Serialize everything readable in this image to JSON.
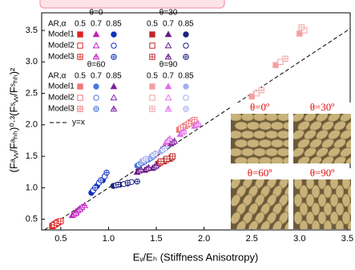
{
  "chart_data": {
    "type": "scatter",
    "x_label": "Eᵥ/Eₕ (Stiffness Anisotropy)",
    "y_label": "(Fᵃᵥᵥ/Fᵃₕₕ)⁰·³(Fˢᵥᵥ/Fˢₕₕ)²",
    "xlim": [
      0.3,
      3.53
    ],
    "ylim": [
      0.33,
      3.78
    ],
    "xticks": [
      0.5,
      {
        "value": 1,
        "label": "1.0"
      },
      1.5,
      {
        "value": 2,
        "label": "2.0"
      },
      2.5,
      {
        "value": 3,
        "label": "3.0"
      },
      3.5
    ],
    "yticks": [
      0.5,
      {
        "value": 1,
        "label": "1.0"
      },
      1.5,
      {
        "value": 2,
        "label": "2.0"
      },
      2.5,
      {
        "value": 3,
        "label": "3.0"
      },
      3.5
    ],
    "line_label": "y=x",
    "fills": [
      "filled",
      "open",
      "crossed"
    ],
    "legend_blocks": [
      {
        "ar_header": "AR,α",
        "models": [
          "Model1",
          "Model2",
          "Model3"
        ],
        "groups": [
          {
            "title": "θ=0",
            "ar_labels": [
              "0.5",
              "0.7",
              "0.85"
            ],
            "markers": [
              "square",
              "triangle",
              "circle"
            ],
            "colors": [
              "#e02020",
              "#c020c0",
              "#1030c0"
            ],
            "series": [
              [
                {
                  "x": [
                    0.41,
                    0.44,
                    0.47
                  ],
                  "y": [
                    0.39,
                    0.42,
                    0.45
                  ]
                },
                {
                  "x": [
                    0.62,
                    0.66,
                    0.7
                  ],
                  "y": [
                    0.56,
                    0.62,
                    0.67
                  ]
                },
                {
                  "x": [
                    0.82,
                    0.88,
                    0.94
                  ],
                  "y": [
                    0.92,
                    1.03,
                    1.12
                  ]
                }
              ],
              [
                {
                  "x": [
                    0.42,
                    0.45,
                    0.48
                  ],
                  "y": [
                    0.4,
                    0.43,
                    0.46
                  ]
                },
                {
                  "x": [
                    0.64,
                    0.68,
                    0.72
                  ],
                  "y": [
                    0.58,
                    0.64,
                    0.69
                  ]
                },
                {
                  "x": [
                    0.84,
                    0.9,
                    0.96
                  ],
                  "y": [
                    0.96,
                    1.08,
                    1.18
                  ]
                }
              ],
              [
                {
                  "x": [
                    0.43,
                    0.46,
                    0.5
                  ],
                  "y": [
                    0.41,
                    0.44,
                    0.47
                  ]
                },
                {
                  "x": [
                    0.66,
                    0.7,
                    0.75
                  ],
                  "y": [
                    0.6,
                    0.66,
                    0.72
                  ]
                },
                {
                  "x": [
                    0.86,
                    0.92,
                    0.98
                  ],
                  "y": [
                    1.0,
                    1.12,
                    1.24
                  ]
                }
              ]
            ]
          },
          {
            "title": "θ=30",
            "ar_labels": [
              "0.5",
              "0.7",
              "0.85"
            ],
            "markers": [
              "square",
              "triangle",
              "circle"
            ],
            "colors": [
              "#c02828",
              "#6a1a8a",
              "#1a237e"
            ],
            "series": [
              [
                {
                  "x": [
                    1.52,
                    1.58,
                    1.64
                  ],
                  "y": [
                    1.38,
                    1.42,
                    1.46
                  ]
                },
                {
                  "x": [
                    1.3,
                    1.38,
                    1.46
                  ],
                  "y": [
                    1.25,
                    1.28,
                    1.31
                  ]
                },
                {
                  "x": [
                    1.05,
                    1.12,
                    1.2
                  ],
                  "y": [
                    1.03,
                    1.05,
                    1.07
                  ]
                }
              ],
              [
                {
                  "x": [
                    1.54,
                    1.6,
                    1.66
                  ],
                  "y": [
                    1.4,
                    1.44,
                    1.48
                  ]
                },
                {
                  "x": [
                    1.32,
                    1.4,
                    1.48
                  ],
                  "y": [
                    1.27,
                    1.3,
                    1.33
                  ]
                },
                {
                  "x": [
                    1.08,
                    1.16,
                    1.24
                  ],
                  "y": [
                    1.04,
                    1.06,
                    1.09
                  ]
                }
              ],
              [
                {
                  "x": [
                    1.55,
                    1.61,
                    1.67
                  ],
                  "y": [
                    1.42,
                    1.46,
                    1.5
                  ]
                },
                {
                  "x": [
                    1.34,
                    1.42,
                    1.5
                  ],
                  "y": [
                    1.29,
                    1.32,
                    1.35
                  ]
                },
                {
                  "x": [
                    1.1,
                    1.2,
                    1.3
                  ],
                  "y": [
                    1.05,
                    1.08,
                    1.1
                  ]
                }
              ]
            ]
          }
        ]
      },
      {
        "ar_header": "AR,α",
        "models": [
          "Model1",
          "Model2",
          "Model3"
        ],
        "groups": [
          {
            "title": "θ=60",
            "ar_labels": [
              "0.5",
              "0.7",
              "0.85"
            ],
            "markers": [
              "square",
              "circle",
              "triangle"
            ],
            "colors": [
              "#f07878",
              "#4a78e0",
              "#8020a0"
            ],
            "series": [
              [
                {
                  "x": [
                    1.74,
                    1.8,
                    1.86
                  ],
                  "y": [
                    1.92,
                    1.98,
                    2.04
                  ]
                },
                {
                  "x": [
                    1.3,
                    1.36,
                    1.42
                  ],
                  "y": [
                    1.35,
                    1.4,
                    1.45
                  ]
                },
                {
                  "x": [
                    1.45,
                    1.55,
                    1.65
                  ],
                  "y": [
                    1.5,
                    1.6,
                    1.7
                  ]
                }
              ],
              [
                {
                  "x": [
                    1.76,
                    1.82,
                    1.88
                  ],
                  "y": [
                    1.94,
                    2.0,
                    2.06
                  ]
                },
                {
                  "x": [
                    1.32,
                    1.38,
                    1.44
                  ],
                  "y": [
                    1.37,
                    1.42,
                    1.47
                  ]
                },
                {
                  "x": [
                    1.47,
                    1.57,
                    1.67
                  ],
                  "y": [
                    1.52,
                    1.62,
                    1.72
                  ]
                }
              ],
              [
                {
                  "x": [
                    1.78,
                    1.84,
                    1.9
                  ],
                  "y": [
                    1.96,
                    2.02,
                    2.08
                  ]
                },
                {
                  "x": [
                    1.34,
                    1.4,
                    1.46
                  ],
                  "y": [
                    1.39,
                    1.44,
                    1.49
                  ]
                },
                {
                  "x": [
                    1.49,
                    1.59,
                    1.69
                  ],
                  "y": [
                    1.54,
                    1.64,
                    1.74
                  ]
                }
              ]
            ]
          },
          {
            "title": "θ=90",
            "ar_labels": [
              "0.5",
              "0.7",
              "0.85"
            ],
            "markers": [
              "square",
              "triangle",
              "circle"
            ],
            "colors": [
              "#f4a0a0",
              "#e070e8",
              "#a0b0f0"
            ],
            "series": [
              [
                {
                  "x": [
                    2.5,
                    2.75,
                    3.0
                  ],
                  "y": [
                    2.45,
                    2.95,
                    3.45
                  ]
                },
                {
                  "x": [
                    1.6,
                    1.75,
                    1.9
                  ],
                  "y": [
                    1.72,
                    1.85,
                    1.98
                  ]
                },
                {
                  "x": [
                    1.35,
                    1.45,
                    1.55
                  ],
                  "y": [
                    1.42,
                    1.5,
                    1.58
                  ]
                }
              ],
              [
                {
                  "x": [
                    2.55,
                    2.8,
                    3.05
                  ],
                  "y": [
                    2.5,
                    3.0,
                    3.5
                  ]
                },
                {
                  "x": [
                    1.62,
                    1.77,
                    1.92
                  ],
                  "y": [
                    1.75,
                    1.88,
                    2.0
                  ]
                },
                {
                  "x": [
                    1.37,
                    1.47,
                    1.57
                  ],
                  "y": [
                    1.44,
                    1.52,
                    1.6
                  ]
                }
              ],
              [
                {
                  "x": [
                    2.6,
                    2.85,
                    3.02
                  ],
                  "y": [
                    2.55,
                    3.05,
                    3.55
                  ]
                },
                {
                  "x": [
                    1.64,
                    1.79,
                    1.94
                  ],
                  "y": [
                    1.78,
                    1.9,
                    2.02
                  ]
                },
                {
                  "x": [
                    1.39,
                    1.49,
                    1.59
                  ],
                  "y": [
                    1.46,
                    1.54,
                    1.62
                  ]
                }
              ]
            ]
          }
        ]
      }
    ],
    "panels": [
      {
        "label": "θ=0º"
      },
      {
        "label": "θ=30º"
      },
      {
        "label": "θ=60º"
      },
      {
        "label": "θ=90º"
      }
    ]
  }
}
